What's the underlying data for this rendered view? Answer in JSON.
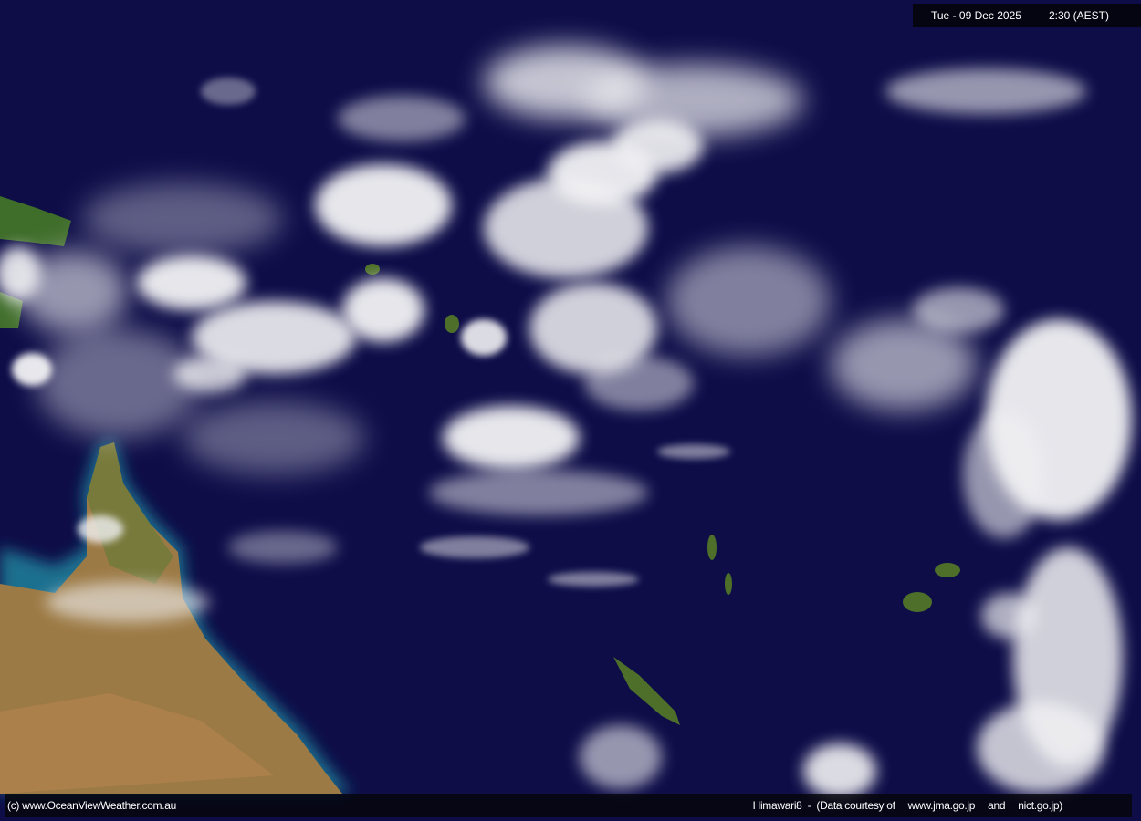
{
  "header": {
    "date": "Tue - 09 Dec 2025",
    "time": "2:30 (AEST)"
  },
  "footer": {
    "copyright": "(c) www.OceanViewWeather.com.au",
    "satellite": "Himawari8  -  (Data courtesy of",
    "source1": "www.jma.go.jp",
    "and": "and",
    "source2": "nict.go.jp)"
  },
  "colors": {
    "ocean": "#0e0d48",
    "land": "#9c7a45",
    "vegetation": "#4a6e2a",
    "cloud": "#ffffff",
    "shallow_water": "#1e6f8f"
  }
}
